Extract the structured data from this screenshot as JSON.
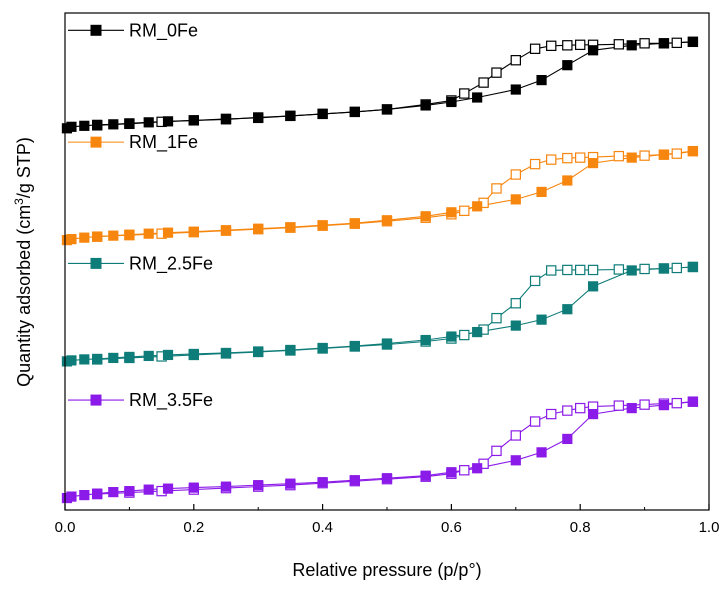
{
  "chart_data": {
    "type": "line",
    "title": "",
    "xlabel": "Relative pressure (p/p°)",
    "ylabel_parts": [
      "Quantity adsorbed (cm",
      "3",
      "/g STP)"
    ],
    "xlim": [
      0.0,
      1.0
    ],
    "ylim": [
      0,
      100
    ],
    "x_ticks": [
      "0.0",
      "0.2",
      "0.4",
      "0.6",
      "0.8",
      "1.0"
    ],
    "y_ticks_shown": false,
    "legend_placement": "inline-left",
    "series": [
      {
        "name": "RM_0Fe",
        "color": "#000000",
        "adsorption": {
          "x": [
            0.003,
            0.01,
            0.03,
            0.05,
            0.075,
            0.1,
            0.13,
            0.16,
            0.2,
            0.25,
            0.3,
            0.35,
            0.4,
            0.45,
            0.5,
            0.56,
            0.6,
            0.64,
            0.7,
            0.74,
            0.78,
            0.82,
            0.88,
            0.93,
            0.975
          ],
          "y": [
            76.8,
            77.1,
            77.3,
            77.5,
            77.6,
            77.8,
            78.0,
            78.2,
            78.4,
            78.6,
            79.0,
            79.3,
            79.7,
            80.1,
            80.6,
            81.4,
            82.1,
            83.0,
            84.6,
            86.5,
            89.5,
            92.5,
            93.5,
            93.9,
            94.2
          ]
        },
        "desorption": {
          "x": [
            0.975,
            0.95,
            0.93,
            0.9,
            0.86,
            0.82,
            0.8,
            0.78,
            0.755,
            0.73,
            0.7,
            0.67,
            0.65,
            0.62,
            0.6,
            0.56,
            0.5,
            0.45,
            0.4,
            0.35,
            0.3,
            0.25,
            0.2,
            0.15,
            0.1,
            0.05
          ],
          "y": [
            94.2,
            94.0,
            93.9,
            93.9,
            93.7,
            93.6,
            93.6,
            93.5,
            93.4,
            92.8,
            90.5,
            88.0,
            86.0,
            83.8,
            82.4,
            81.6,
            80.6,
            80.1,
            79.7,
            79.3,
            78.9,
            78.7,
            78.4,
            78.1,
            77.7,
            77.4
          ]
        }
      },
      {
        "name": "RM_1Fe",
        "color": "#F7860F",
        "adsorption": {
          "x": [
            0.003,
            0.01,
            0.03,
            0.05,
            0.075,
            0.1,
            0.13,
            0.16,
            0.2,
            0.25,
            0.3,
            0.35,
            0.4,
            0.45,
            0.5,
            0.56,
            0.6,
            0.64,
            0.7,
            0.74,
            0.78,
            0.82,
            0.88,
            0.93,
            0.975
          ],
          "y": [
            54.3,
            54.5,
            54.8,
            55.0,
            55.2,
            55.4,
            55.6,
            55.8,
            56.0,
            56.3,
            56.6,
            56.9,
            57.3,
            57.7,
            58.3,
            59.1,
            59.9,
            61.1,
            62.5,
            64.0,
            66.3,
            69.8,
            70.9,
            71.5,
            72.2
          ]
        },
        "desorption": {
          "x": [
            0.975,
            0.95,
            0.93,
            0.9,
            0.86,
            0.82,
            0.8,
            0.78,
            0.755,
            0.73,
            0.7,
            0.67,
            0.65,
            0.62,
            0.6,
            0.56,
            0.5,
            0.45,
            0.4,
            0.35,
            0.3,
            0.25,
            0.2,
            0.15,
            0.1,
            0.05
          ],
          "y": [
            72.2,
            71.7,
            71.5,
            71.3,
            71.2,
            71.0,
            70.9,
            70.8,
            70.5,
            69.6,
            67.5,
            64.7,
            61.8,
            60.2,
            59.5,
            58.8,
            58.1,
            57.6,
            57.2,
            56.8,
            56.5,
            56.2,
            55.9,
            55.6,
            55.3,
            55.0
          ]
        }
      },
      {
        "name": "RM_2.5Fe",
        "color": "#0E7C78",
        "adsorption": {
          "x": [
            0.003,
            0.01,
            0.03,
            0.05,
            0.075,
            0.1,
            0.13,
            0.16,
            0.2,
            0.25,
            0.3,
            0.35,
            0.4,
            0.45,
            0.5,
            0.56,
            0.6,
            0.64,
            0.7,
            0.74,
            0.78,
            0.82,
            0.88,
            0.93,
            0.975
          ],
          "y": [
            29.9,
            30.1,
            30.3,
            30.4,
            30.6,
            30.8,
            31.0,
            31.2,
            31.4,
            31.6,
            31.9,
            32.2,
            32.6,
            33.0,
            33.5,
            34.2,
            34.9,
            35.8,
            37.1,
            38.3,
            40.4,
            45.0,
            48.2,
            48.6,
            48.9
          ]
        },
        "desorption": {
          "x": [
            0.975,
            0.95,
            0.93,
            0.9,
            0.86,
            0.82,
            0.8,
            0.78,
            0.755,
            0.73,
            0.7,
            0.67,
            0.65,
            0.62,
            0.6,
            0.56,
            0.5,
            0.45,
            0.4,
            0.35,
            0.3,
            0.25,
            0.2,
            0.15,
            0.1,
            0.05
          ],
          "y": [
            48.9,
            48.7,
            48.6,
            48.5,
            48.4,
            48.3,
            48.3,
            48.3,
            48.2,
            46.1,
            41.6,
            38.6,
            36.3,
            35.2,
            34.5,
            33.9,
            33.3,
            32.9,
            32.5,
            32.1,
            31.8,
            31.5,
            31.2,
            30.9,
            30.6,
            30.3
          ]
        }
      },
      {
        "name": "RM_3.5Fe",
        "color": "#8B1BE8",
        "adsorption": {
          "x": [
            0.003,
            0.01,
            0.03,
            0.05,
            0.075,
            0.1,
            0.13,
            0.16,
            0.2,
            0.25,
            0.3,
            0.35,
            0.4,
            0.45,
            0.5,
            0.56,
            0.6,
            0.64,
            0.7,
            0.74,
            0.78,
            0.82,
            0.88,
            0.93,
            0.975
          ],
          "y": [
            2.4,
            2.7,
            3.0,
            3.3,
            3.6,
            3.8,
            4.1,
            4.3,
            4.5,
            4.7,
            5.0,
            5.3,
            5.6,
            6.0,
            6.4,
            6.9,
            7.6,
            8.4,
            10.0,
            11.6,
            14.3,
            19.3,
            20.5,
            21.1,
            21.8
          ]
        },
        "desorption": {
          "x": [
            0.975,
            0.95,
            0.93,
            0.9,
            0.86,
            0.82,
            0.8,
            0.78,
            0.755,
            0.73,
            0.7,
            0.67,
            0.65,
            0.62,
            0.6,
            0.56,
            0.5,
            0.45,
            0.4,
            0.35,
            0.3,
            0.25,
            0.2,
            0.15,
            0.1,
            0.05
          ],
          "y": [
            21.8,
            21.5,
            21.4,
            21.2,
            21.0,
            20.8,
            20.5,
            20.0,
            19.3,
            17.8,
            15.0,
            11.9,
            9.3,
            8.0,
            7.3,
            6.7,
            6.2,
            5.8,
            5.4,
            5.0,
            4.7,
            4.4,
            4.1,
            3.8,
            3.5,
            3.2
          ]
        }
      }
    ]
  }
}
